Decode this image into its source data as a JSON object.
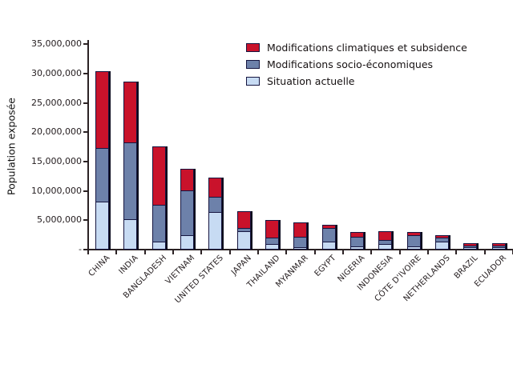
{
  "chart_data": {
    "type": "bar",
    "stacked": true,
    "title": "",
    "xlabel": "",
    "ylabel": "Population exposée",
    "ylim": [
      0,
      35000000
    ],
    "ytick_step": 5000000,
    "ytick_labels": [
      "-",
      "5,000,000",
      "10,000,000",
      "15,000,000",
      "20,000,000",
      "25,000,000",
      "30,000,000",
      "35,000,000"
    ],
    "grid": false,
    "legend_position": "top-right",
    "categories": [
      "CHINA",
      "INDIA",
      "BANGLADESH",
      "VIETNAM",
      "UNITED STATES",
      "JAPAN",
      "THAILAND",
      "MYANMAR",
      "EGYPT",
      "NIGERIA",
      "INDONESIA",
      "CÔTE D'IVOIRE",
      "NETHERLANDS",
      "BRAZIL",
      "ECUADOR"
    ],
    "series": [
      {
        "name": "Situation actuelle",
        "color": "#c7dbf3",
        "values": [
          8100000,
          5100000,
          1200000,
          2300000,
          6400000,
          3100000,
          800000,
          350000,
          1300000,
          400000,
          900000,
          400000,
          1300000,
          400000,
          300000
        ]
      },
      {
        "name": "Modifications socio-économiques",
        "color": "#6d81aa",
        "values": [
          9200000,
          13200000,
          6400000,
          7800000,
          2700000,
          550000,
          1200000,
          1750000,
          2450000,
          1800000,
          700000,
          2200000,
          800000,
          350000,
          400000
        ]
      },
      {
        "name": "Modifications climatiques et subsidence",
        "color": "#c9122b",
        "values": [
          13100000,
          10300000,
          10000000,
          3700000,
          3200000,
          2900000,
          3000000,
          2600000,
          450000,
          800000,
          1500000,
          400000,
          400000,
          350000,
          400000
        ]
      }
    ],
    "legend_order": [
      "Modifications climatiques et subsidence",
      "Modifications socio-économiques",
      "Situation actuelle"
    ]
  },
  "colors": {
    "axis": "#2b2224",
    "bar_border": "#151540",
    "background": "#ffffff"
  }
}
